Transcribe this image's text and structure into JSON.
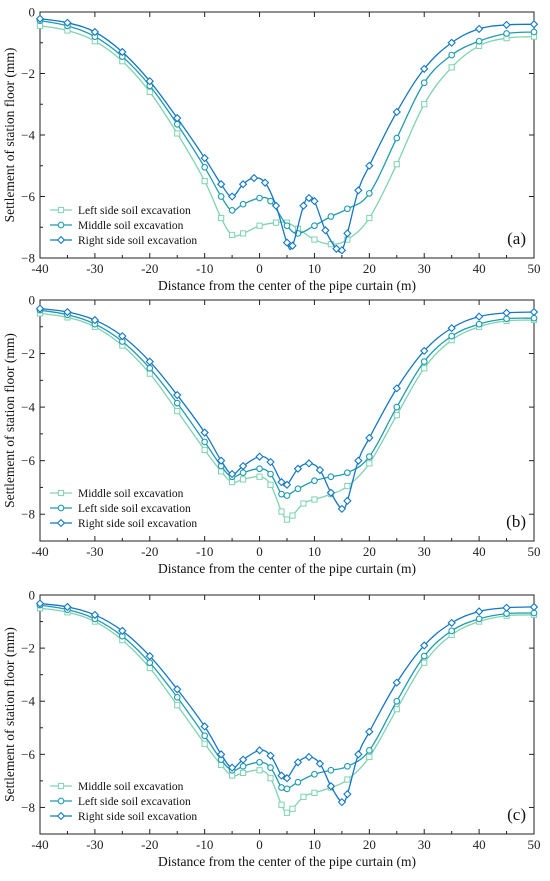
{
  "chart_data": [
    {
      "type": "line",
      "panel_label": "(a)",
      "xlabel": "Distance from the center of the pipe curtain (m)",
      "ylabel": "Settlement of station floor (mm)",
      "xlim": [
        -40,
        50
      ],
      "ylim": [
        -8,
        0
      ],
      "xticks": [
        -40,
        -30,
        -20,
        -10,
        0,
        10,
        20,
        30,
        40,
        50
      ],
      "yticks": [
        0,
        -2,
        -4,
        -6,
        -8
      ],
      "legend_position": "bottom-left",
      "series": [
        {
          "name": "Left side soil excavation",
          "marker": "square",
          "color": "#7fd3b0",
          "points": [
            [
              -40,
              -0.45
            ],
            [
              -35,
              -0.6
            ],
            [
              -30,
              -0.95
            ],
            [
              -25,
              -1.6
            ],
            [
              -20,
              -2.6
            ],
            [
              -15,
              -3.95
            ],
            [
              -10,
              -5.5
            ],
            [
              -7,
              -6.7
            ],
            [
              -5,
              -7.25
            ],
            [
              -3,
              -7.2
            ],
            [
              0,
              -6.95
            ],
            [
              3,
              -6.85
            ],
            [
              5,
              -6.85
            ],
            [
              7,
              -7.05
            ],
            [
              10,
              -7.4
            ],
            [
              13,
              -7.55
            ],
            [
              16,
              -7.4
            ],
            [
              20,
              -6.7
            ],
            [
              25,
              -4.95
            ],
            [
              30,
              -3.0
            ],
            [
              35,
              -1.8
            ],
            [
              40,
              -1.1
            ],
            [
              45,
              -0.85
            ],
            [
              50,
              -0.8
            ]
          ]
        },
        {
          "name": "Middle soil excavation",
          "marker": "circle",
          "color": "#1f9bb0",
          "points": [
            [
              -40,
              -0.28
            ],
            [
              -35,
              -0.45
            ],
            [
              -30,
              -0.8
            ],
            [
              -25,
              -1.45
            ],
            [
              -20,
              -2.4
            ],
            [
              -15,
              -3.65
            ],
            [
              -10,
              -5.05
            ],
            [
              -7,
              -6.0
            ],
            [
              -5,
              -6.45
            ],
            [
              -3,
              -6.25
            ],
            [
              0,
              -6.05
            ],
            [
              2,
              -6.15
            ],
            [
              5,
              -6.95
            ],
            [
              7,
              -7.2
            ],
            [
              10,
              -6.95
            ],
            [
              13,
              -6.65
            ],
            [
              16,
              -6.4
            ],
            [
              20,
              -5.9
            ],
            [
              25,
              -4.1
            ],
            [
              30,
              -2.3
            ],
            [
              35,
              -1.4
            ],
            [
              40,
              -0.95
            ],
            [
              45,
              -0.7
            ],
            [
              50,
              -0.65
            ]
          ]
        },
        {
          "name": "Right side soil excavation",
          "marker": "diamond",
          "color": "#1577c4",
          "points": [
            [
              -40,
              -0.22
            ],
            [
              -35,
              -0.35
            ],
            [
              -30,
              -0.65
            ],
            [
              -25,
              -1.3
            ],
            [
              -20,
              -2.25
            ],
            [
              -15,
              -3.45
            ],
            [
              -10,
              -4.75
            ],
            [
              -7,
              -5.6
            ],
            [
              -5,
              -6.0
            ],
            [
              -3,
              -5.6
            ],
            [
              -1,
              -5.4
            ],
            [
              1,
              -5.55
            ],
            [
              3,
              -6.3
            ],
            [
              5,
              -7.5
            ],
            [
              6,
              -7.6
            ],
            [
              8,
              -6.3
            ],
            [
              9,
              -6.05
            ],
            [
              10,
              -6.15
            ],
            [
              12,
              -7.1
            ],
            [
              14,
              -7.7
            ],
            [
              15,
              -7.75
            ],
            [
              16,
              -7.2
            ],
            [
              18,
              -5.8
            ],
            [
              20,
              -5.0
            ],
            [
              25,
              -3.25
            ],
            [
              30,
              -1.85
            ],
            [
              35,
              -1.0
            ],
            [
              40,
              -0.55
            ],
            [
              45,
              -0.42
            ],
            [
              50,
              -0.4
            ]
          ]
        }
      ]
    },
    {
      "type": "line",
      "panel_label": "(b)",
      "xlabel": "Distance from the center of the pipe curtain (m)",
      "ylabel": "Settlement of station floor (mm)",
      "xlim": [
        -40,
        50
      ],
      "ylim": [
        -9,
        0
      ],
      "xticks": [
        -40,
        -30,
        -20,
        -10,
        0,
        10,
        20,
        30,
        40,
        50
      ],
      "yticks": [
        0,
        -2,
        -4,
        -6,
        -8
      ],
      "legend_position": "bottom-left",
      "series": [
        {
          "name": "Middle soil excavation",
          "marker": "square",
          "color": "#7fd3b0",
          "points": [
            [
              -40,
              -0.5
            ],
            [
              -35,
              -0.65
            ],
            [
              -30,
              -1.0
            ],
            [
              -25,
              -1.7
            ],
            [
              -20,
              -2.75
            ],
            [
              -15,
              -4.15
            ],
            [
              -10,
              -5.6
            ],
            [
              -7,
              -6.4
            ],
            [
              -5,
              -6.8
            ],
            [
              -3,
              -6.7
            ],
            [
              0,
              -6.6
            ],
            [
              2,
              -6.9
            ],
            [
              4,
              -7.9
            ],
            [
              5,
              -8.2
            ],
            [
              6,
              -8.05
            ],
            [
              8,
              -7.6
            ],
            [
              10,
              -7.45
            ],
            [
              13,
              -7.25
            ],
            [
              16,
              -6.95
            ],
            [
              20,
              -6.1
            ],
            [
              25,
              -4.3
            ],
            [
              30,
              -2.55
            ],
            [
              35,
              -1.5
            ],
            [
              40,
              -1.0
            ],
            [
              45,
              -0.78
            ],
            [
              50,
              -0.75
            ]
          ]
        },
        {
          "name": "Left side soil excavation",
          "marker": "circle",
          "color": "#1f9bb0",
          "points": [
            [
              -40,
              -0.38
            ],
            [
              -35,
              -0.55
            ],
            [
              -30,
              -0.9
            ],
            [
              -25,
              -1.55
            ],
            [
              -20,
              -2.55
            ],
            [
              -15,
              -3.85
            ],
            [
              -10,
              -5.3
            ],
            [
              -7,
              -6.2
            ],
            [
              -5,
              -6.6
            ],
            [
              -3,
              -6.45
            ],
            [
              0,
              -6.3
            ],
            [
              2,
              -6.5
            ],
            [
              4,
              -7.25
            ],
            [
              5,
              -7.3
            ],
            [
              7,
              -7.05
            ],
            [
              10,
              -6.75
            ],
            [
              13,
              -6.6
            ],
            [
              16,
              -6.45
            ],
            [
              20,
              -5.85
            ],
            [
              25,
              -4.0
            ],
            [
              30,
              -2.3
            ],
            [
              35,
              -1.35
            ],
            [
              40,
              -0.9
            ],
            [
              45,
              -0.7
            ],
            [
              50,
              -0.68
            ]
          ]
        },
        {
          "name": "Right side soil excavation",
          "marker": "diamond",
          "color": "#1577c4",
          "points": [
            [
              -40,
              -0.32
            ],
            [
              -35,
              -0.45
            ],
            [
              -30,
              -0.75
            ],
            [
              -25,
              -1.35
            ],
            [
              -20,
              -2.3
            ],
            [
              -15,
              -3.55
            ],
            [
              -10,
              -4.95
            ],
            [
              -7,
              -6.0
            ],
            [
              -5,
              -6.5
            ],
            [
              -3,
              -6.2
            ],
            [
              0,
              -5.85
            ],
            [
              2,
              -6.05
            ],
            [
              4,
              -6.8
            ],
            [
              5,
              -6.9
            ],
            [
              7,
              -6.3
            ],
            [
              9,
              -6.1
            ],
            [
              11,
              -6.35
            ],
            [
              13,
              -7.2
            ],
            [
              15,
              -7.8
            ],
            [
              16,
              -7.5
            ],
            [
              18,
              -6.0
            ],
            [
              20,
              -5.15
            ],
            [
              25,
              -3.3
            ],
            [
              30,
              -1.9
            ],
            [
              35,
              -1.05
            ],
            [
              40,
              -0.62
            ],
            [
              45,
              -0.48
            ],
            [
              50,
              -0.45
            ]
          ]
        }
      ]
    },
    {
      "type": "line",
      "panel_label": "(c)",
      "xlabel": "Distance from the center of the pipe curtain (m)",
      "ylabel": "Settlement of station floor (mm)",
      "xlim": [
        -40,
        50
      ],
      "ylim": [
        -9,
        0
      ],
      "xticks": [
        -40,
        -30,
        -20,
        -10,
        0,
        10,
        20,
        30,
        40,
        50
      ],
      "yticks": [
        0,
        -2,
        -4,
        -6,
        -8
      ],
      "legend_position": "bottom-left",
      "series": [
        {
          "name": "Middle soil excavation",
          "marker": "square",
          "color": "#7fd3b0",
          "points": [
            [
              -40,
              -0.5
            ],
            [
              -35,
              -0.65
            ],
            [
              -30,
              -1.0
            ],
            [
              -25,
              -1.7
            ],
            [
              -20,
              -2.75
            ],
            [
              -15,
              -4.15
            ],
            [
              -10,
              -5.6
            ],
            [
              -7,
              -6.4
            ],
            [
              -5,
              -6.8
            ],
            [
              -3,
              -6.7
            ],
            [
              0,
              -6.6
            ],
            [
              2,
              -6.9
            ],
            [
              4,
              -7.9
            ],
            [
              5,
              -8.2
            ],
            [
              6,
              -8.05
            ],
            [
              8,
              -7.6
            ],
            [
              10,
              -7.45
            ],
            [
              13,
              -7.25
            ],
            [
              16,
              -6.95
            ],
            [
              20,
              -6.1
            ],
            [
              25,
              -4.3
            ],
            [
              30,
              -2.55
            ],
            [
              35,
              -1.5
            ],
            [
              40,
              -1.0
            ],
            [
              45,
              -0.78
            ],
            [
              50,
              -0.75
            ]
          ]
        },
        {
          "name": "Left side soil excavation",
          "marker": "circle",
          "color": "#1f9bb0",
          "points": [
            [
              -40,
              -0.38
            ],
            [
              -35,
              -0.55
            ],
            [
              -30,
              -0.9
            ],
            [
              -25,
              -1.55
            ],
            [
              -20,
              -2.55
            ],
            [
              -15,
              -3.85
            ],
            [
              -10,
              -5.3
            ],
            [
              -7,
              -6.2
            ],
            [
              -5,
              -6.6
            ],
            [
              -3,
              -6.45
            ],
            [
              0,
              -6.3
            ],
            [
              2,
              -6.5
            ],
            [
              4,
              -7.25
            ],
            [
              5,
              -7.3
            ],
            [
              7,
              -7.05
            ],
            [
              10,
              -6.75
            ],
            [
              13,
              -6.6
            ],
            [
              16,
              -6.45
            ],
            [
              20,
              -5.85
            ],
            [
              25,
              -4.0
            ],
            [
              30,
              -2.3
            ],
            [
              35,
              -1.35
            ],
            [
              40,
              -0.9
            ],
            [
              45,
              -0.7
            ],
            [
              50,
              -0.68
            ]
          ]
        },
        {
          "name": "Right side soil excavation",
          "marker": "diamond",
          "color": "#1577c4",
          "points": [
            [
              -40,
              -0.32
            ],
            [
              -35,
              -0.45
            ],
            [
              -30,
              -0.75
            ],
            [
              -25,
              -1.35
            ],
            [
              -20,
              -2.3
            ],
            [
              -15,
              -3.55
            ],
            [
              -10,
              -4.95
            ],
            [
              -7,
              -6.0
            ],
            [
              -5,
              -6.5
            ],
            [
              -3,
              -6.2
            ],
            [
              0,
              -5.85
            ],
            [
              2,
              -6.05
            ],
            [
              4,
              -6.8
            ],
            [
              5,
              -6.9
            ],
            [
              7,
              -6.3
            ],
            [
              9,
              -6.1
            ],
            [
              11,
              -6.35
            ],
            [
              13,
              -7.2
            ],
            [
              15,
              -7.8
            ],
            [
              16,
              -7.5
            ],
            [
              18,
              -6.0
            ],
            [
              20,
              -5.15
            ],
            [
              25,
              -3.3
            ],
            [
              30,
              -1.9
            ],
            [
              35,
              -1.05
            ],
            [
              40,
              -0.62
            ],
            [
              45,
              -0.48
            ],
            [
              50,
              -0.45
            ]
          ]
        }
      ]
    }
  ]
}
